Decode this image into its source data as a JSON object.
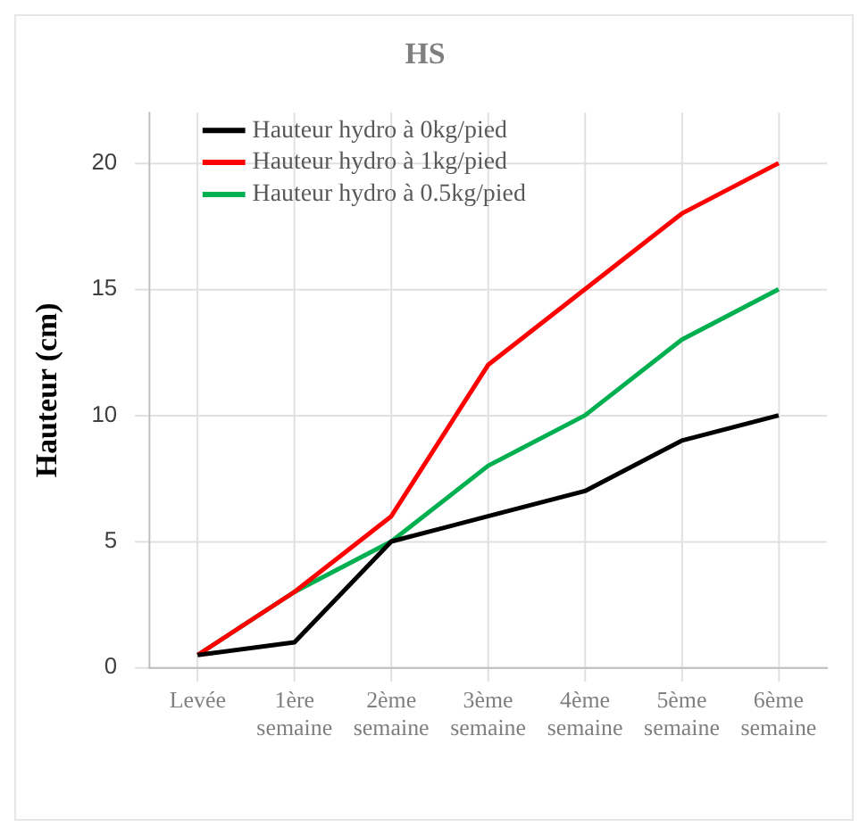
{
  "chart_data": {
    "type": "line",
    "title": "HS",
    "ylabel": "Hauteur (cm)",
    "categories": [
      "Levée",
      "1ère semaine",
      "2ème semaine",
      "3ème semaine",
      "4ème semaine",
      "5ème semaine",
      "6ème semaine"
    ],
    "series": [
      {
        "name": "Hauteur hydro à 0kg/pied",
        "color": "#000000",
        "values": [
          0.5,
          1,
          5,
          6,
          7,
          9,
          10
        ]
      },
      {
        "name": "Hauteur hydro à 1kg/pied",
        "color": "#ff0000",
        "values": [
          0.5,
          3,
          6,
          12,
          15,
          18,
          20
        ]
      },
      {
        "name": "Hauteur hydro à 0.5kg/pied",
        "color": "#00b050",
        "values": [
          0.5,
          3,
          5,
          8,
          10,
          13,
          15
        ]
      }
    ],
    "ylim": [
      0,
      22
    ],
    "yticks": [
      0,
      5,
      10,
      15,
      20
    ],
    "grid": true,
    "legend": "top left",
    "marker": "none",
    "line_style": "solid"
  }
}
